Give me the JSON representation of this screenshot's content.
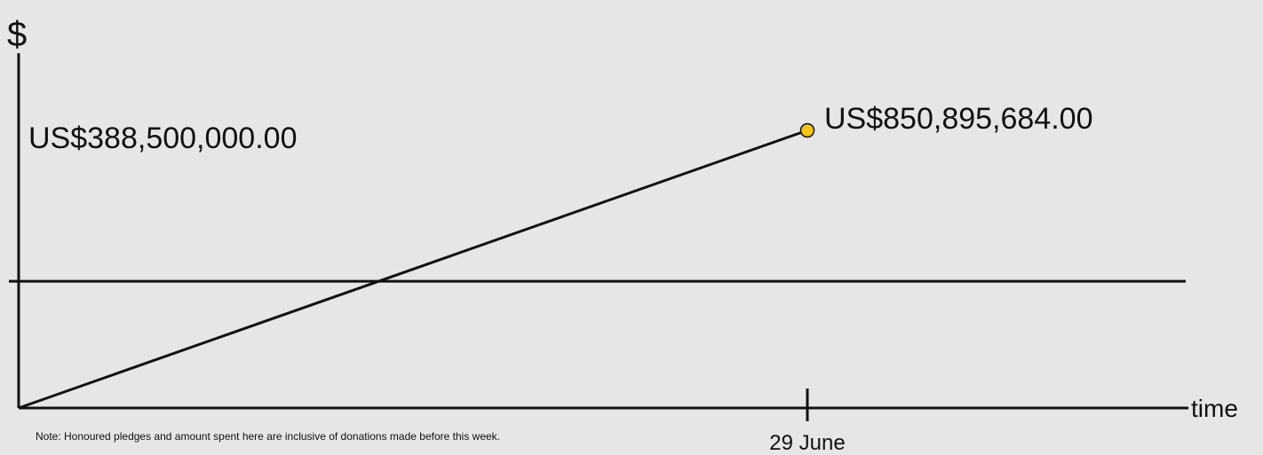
{
  "chart_data": {
    "type": "line",
    "ylabel": "$",
    "xlabel": "time",
    "x_ticks": [
      "29 June"
    ],
    "series": [
      {
        "x": [
          "start",
          "29 June"
        ],
        "values": [
          0,
          850895684.0
        ]
      }
    ],
    "end_point_label": "US$850,895,684.00",
    "end_point_marker_color": "#f5c518",
    "reference_line": {
      "value": 388500000.0,
      "label": "US$388,500,000.00"
    },
    "grid": false,
    "note": "Note: Honoured pledges and amount spent here are inclusive of donations made before this week."
  }
}
